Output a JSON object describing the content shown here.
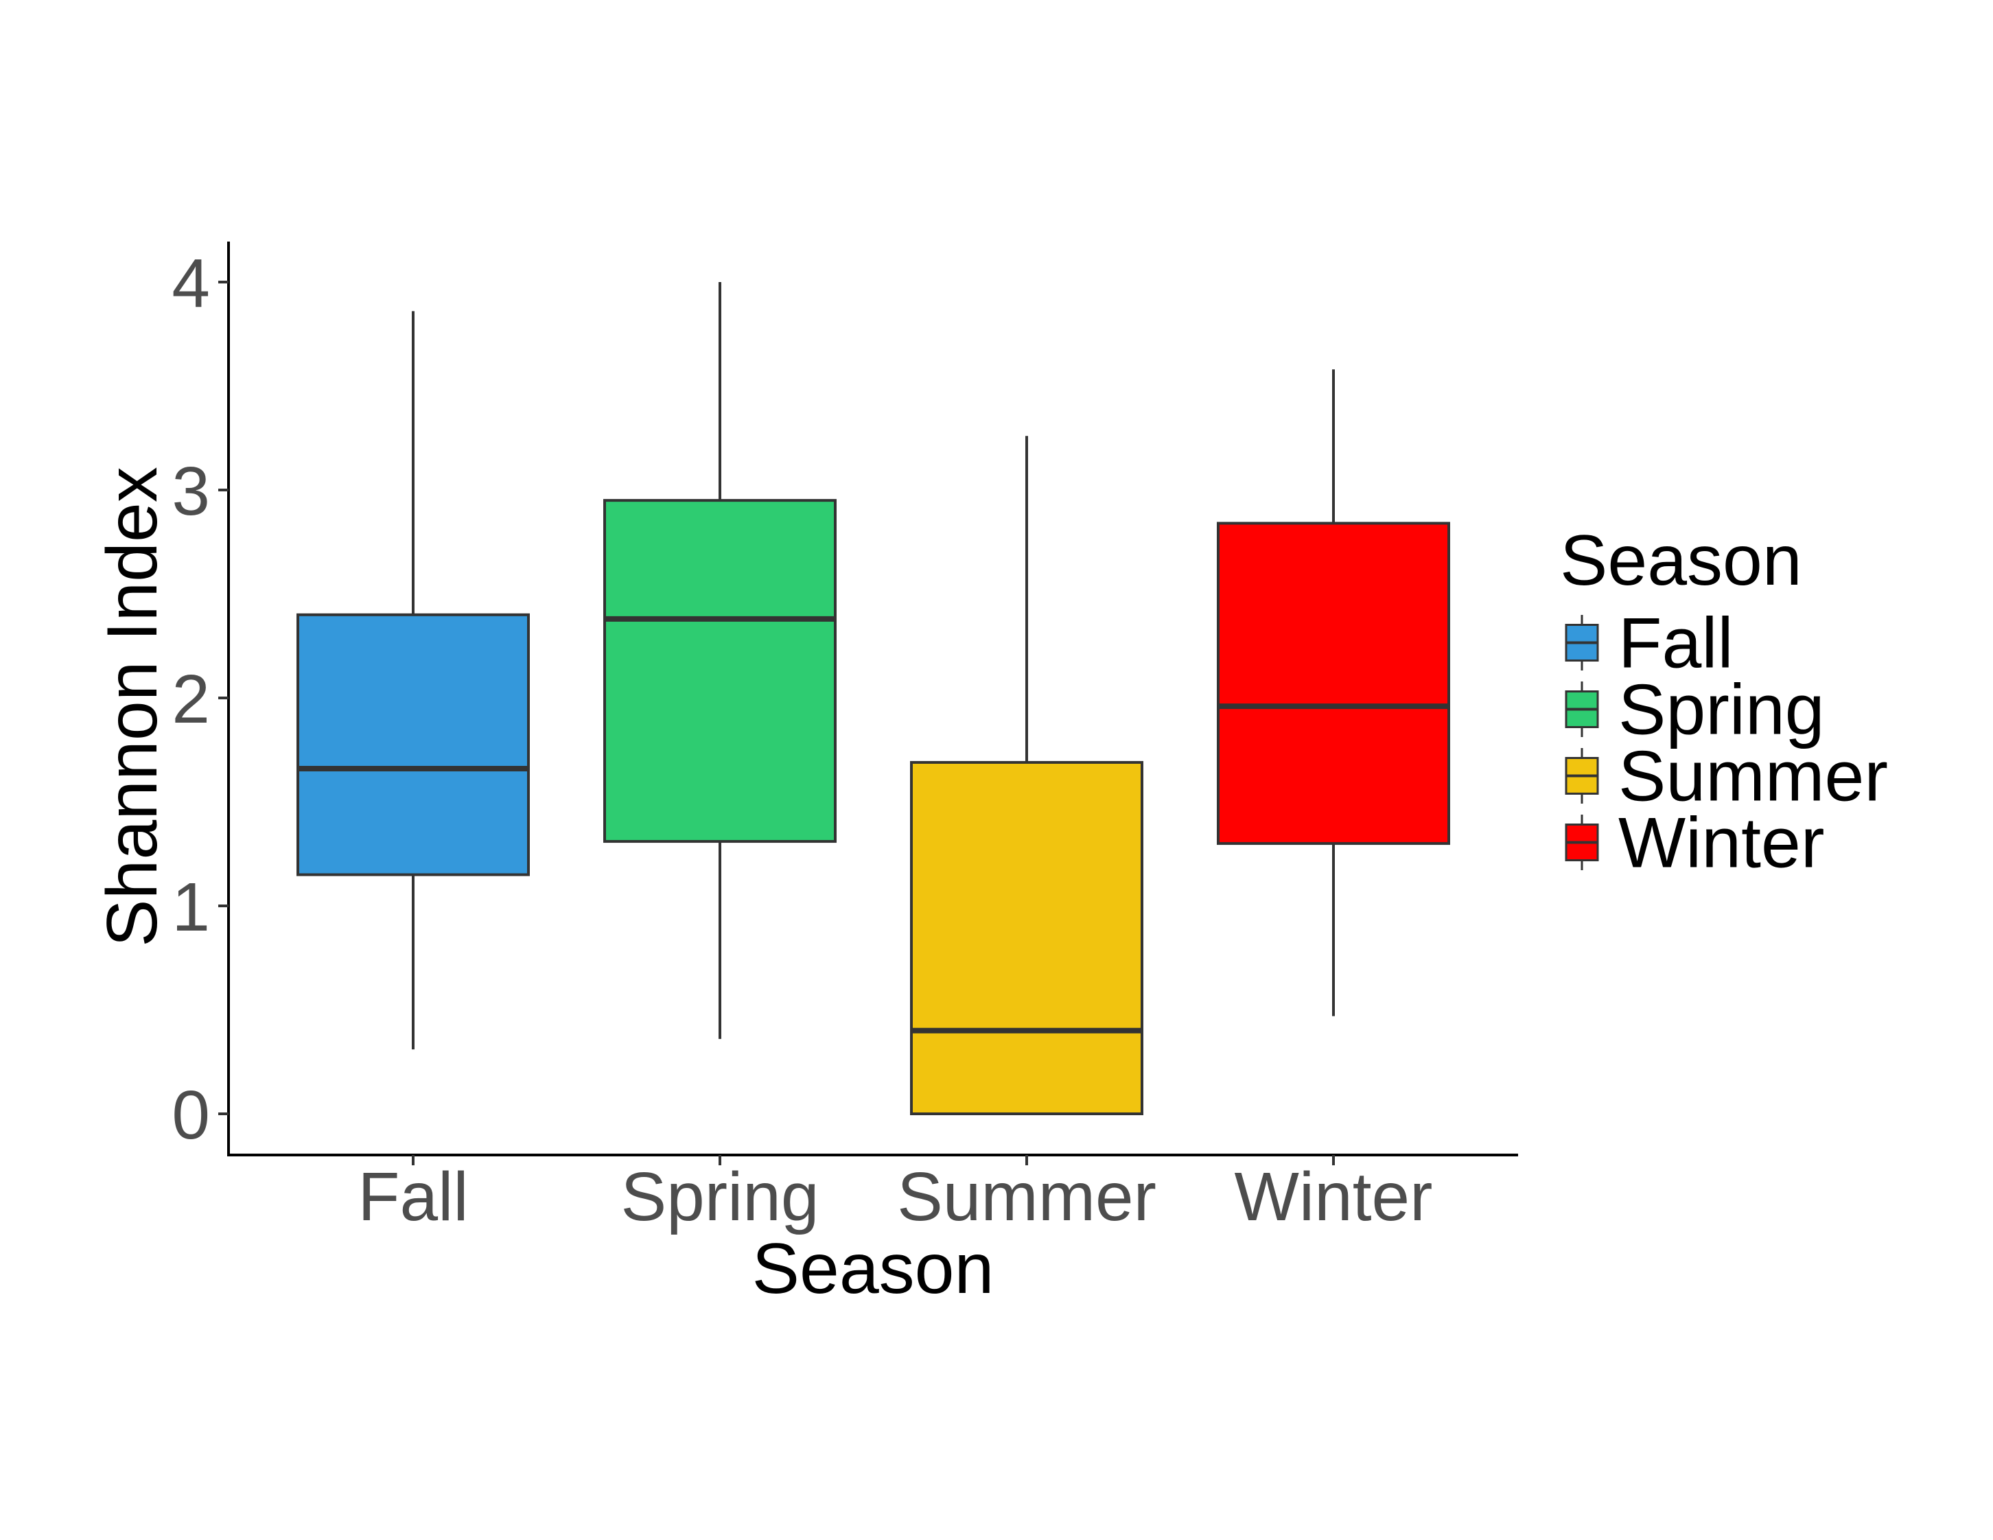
{
  "chart_data": {
    "type": "box",
    "xlabel": "Season",
    "ylabel": "Shannon Index",
    "ylim": [
      -0.1,
      4.2
    ],
    "yticks": [
      "0",
      "1",
      "2",
      "3",
      "4"
    ],
    "grid": false,
    "legend": {
      "title": "Season",
      "position": "right"
    },
    "categories": [
      "Fall",
      "Spring",
      "Summer",
      "Winter"
    ],
    "series": [
      {
        "name": "Fall",
        "color": "#3498db",
        "whisker_low": 0.31,
        "q1": 1.15,
        "median": 1.66,
        "q3": 2.4,
        "whisker_high": 3.86
      },
      {
        "name": "Spring",
        "color": "#2ecc71",
        "whisker_low": 0.36,
        "q1": 1.31,
        "median": 2.38,
        "q3": 2.95,
        "whisker_high": 4.0
      },
      {
        "name": "Summer",
        "color": "#f1c40f",
        "whisker_low": 0.0,
        "q1": 0.0,
        "median": 0.4,
        "q3": 1.69,
        "whisker_high": 3.26
      },
      {
        "name": "Winter",
        "color": "#ff0000",
        "whisker_low": 0.47,
        "q1": 1.3,
        "median": 1.96,
        "q3": 2.84,
        "whisker_high": 3.58
      }
    ]
  }
}
